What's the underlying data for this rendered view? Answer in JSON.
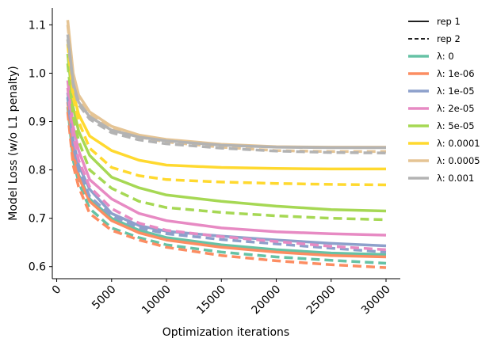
{
  "chart_data": {
    "type": "line",
    "title": "",
    "xlabel": "Optimization iterations",
    "ylabel": "Model Loss (w/o L1 penalty)",
    "xlim": [
      -400,
      31300
    ],
    "ylim": [
      0.575,
      1.135
    ],
    "x_ticks": [
      0,
      5000,
      10000,
      15000,
      20000,
      25000,
      30000
    ],
    "x_tick_labels": [
      "0",
      "5000",
      "10000",
      "15000",
      "20000",
      "25000",
      "30000"
    ],
    "y_ticks": [
      0.6,
      0.7,
      0.8,
      0.9,
      1.0,
      1.1
    ],
    "y_tick_labels": [
      "0.6",
      "0.7",
      "0.8",
      "0.9",
      "1.0",
      "1.1"
    ],
    "grid": false,
    "legend_position": "outside-right",
    "line_style_legend": [
      {
        "label": "rep 1",
        "style": "solid"
      },
      {
        "label": "rep 2",
        "style": "dashed"
      }
    ],
    "x": [
      1000,
      1500,
      2000,
      3000,
      5000,
      7500,
      10000,
      15000,
      20000,
      25000,
      30000
    ],
    "series": [
      {
        "name": "λ: 0",
        "color": "#66c2a5",
        "rep1": [
          0.95,
          0.84,
          0.79,
          0.74,
          0.7,
          0.675,
          0.66,
          0.645,
          0.635,
          0.628,
          0.625
        ],
        "rep2": [
          0.93,
          0.82,
          0.775,
          0.72,
          0.68,
          0.66,
          0.645,
          0.63,
          0.62,
          0.613,
          0.607
        ]
      },
      {
        "name": "λ: 1e-06",
        "color": "#fc8d62",
        "rep1": [
          0.94,
          0.835,
          0.785,
          0.735,
          0.695,
          0.67,
          0.655,
          0.64,
          0.63,
          0.623,
          0.62
        ],
        "rep2": [
          0.92,
          0.81,
          0.765,
          0.71,
          0.675,
          0.655,
          0.64,
          0.623,
          0.612,
          0.604,
          0.598
        ]
      },
      {
        "name": "λ: 1e-05",
        "color": "#8da0cb",
        "rep1": [
          0.96,
          0.86,
          0.81,
          0.76,
          0.71,
          0.685,
          0.673,
          0.663,
          0.655,
          0.648,
          0.643
        ],
        "rep2": [
          0.95,
          0.85,
          0.8,
          0.745,
          0.705,
          0.68,
          0.668,
          0.656,
          0.647,
          0.638,
          0.63
        ]
      },
      {
        "name": "λ: 2e-05",
        "color": "#e78ac3",
        "rep1": [
          0.985,
          0.89,
          0.84,
          0.78,
          0.74,
          0.71,
          0.695,
          0.68,
          0.672,
          0.668,
          0.665
        ],
        "rep2": [
          0.97,
          0.87,
          0.82,
          0.765,
          0.72,
          0.69,
          0.675,
          0.662,
          0.652,
          0.642,
          0.635
        ]
      },
      {
        "name": "λ: 5e-05",
        "color": "#a6d854",
        "rep1": [
          1.04,
          0.93,
          0.88,
          0.83,
          0.785,
          0.763,
          0.748,
          0.735,
          0.725,
          0.718,
          0.715
        ],
        "rep2": [
          1.02,
          0.91,
          0.86,
          0.8,
          0.762,
          0.735,
          0.722,
          0.712,
          0.705,
          0.7,
          0.697
        ]
      },
      {
        "name": "λ: 0.0001",
        "color": "#ffd92f",
        "rep1": [
          1.07,
          0.96,
          0.915,
          0.87,
          0.84,
          0.82,
          0.81,
          0.805,
          0.803,
          0.802,
          0.802
        ],
        "rep2": [
          1.06,
          0.95,
          0.9,
          0.845,
          0.805,
          0.788,
          0.78,
          0.775,
          0.772,
          0.77,
          0.769
        ]
      },
      {
        "name": "λ: 0.0005",
        "color": "#e5c494",
        "rep1": [
          1.11,
          1.0,
          0.955,
          0.92,
          0.89,
          0.872,
          0.863,
          0.853,
          0.848,
          0.847,
          0.847
        ],
        "rep2": [
          1.1,
          0.995,
          0.95,
          0.915,
          0.885,
          0.868,
          0.858,
          0.847,
          0.84,
          0.838,
          0.838
        ]
      },
      {
        "name": "λ: 0.001",
        "color": "#b3b3b3",
        "rep1": [
          1.08,
          0.98,
          0.94,
          0.91,
          0.882,
          0.868,
          0.86,
          0.851,
          0.847,
          0.846,
          0.846
        ],
        "rep2": [
          1.07,
          0.975,
          0.935,
          0.905,
          0.877,
          0.862,
          0.854,
          0.845,
          0.839,
          0.836,
          0.835
        ]
      }
    ]
  }
}
